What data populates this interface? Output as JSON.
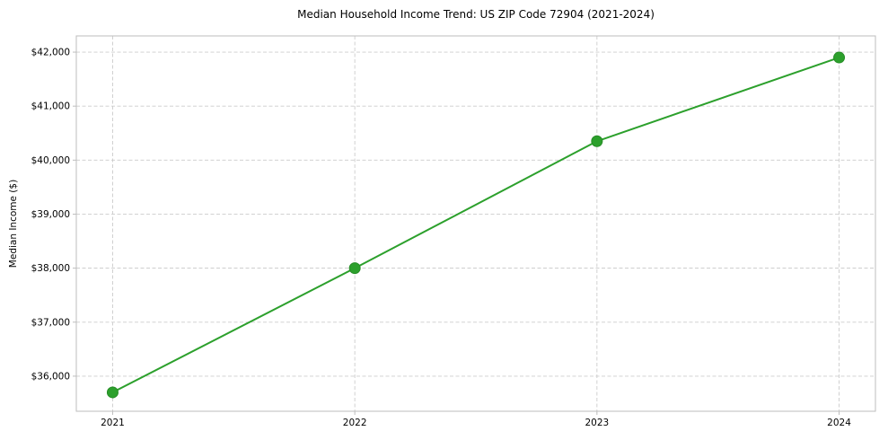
{
  "chart_data": {
    "type": "line",
    "title": "Median Household Income Trend: US ZIP Code 72904 (2021-2024)",
    "xlabel": "",
    "ylabel": "Median Income ($)",
    "x": [
      2021,
      2022,
      2023,
      2024
    ],
    "y": [
      35700,
      38000,
      40350,
      41900
    ],
    "series": [
      {
        "name": "Median Household Income",
        "x": [
          2021,
          2022,
          2023,
          2024
        ],
        "y": [
          35700,
          38000,
          40350,
          41900
        ]
      }
    ],
    "xtick_labels": [
      "2021",
      "2022",
      "2023",
      "2024"
    ],
    "yticks": [
      36000,
      37000,
      38000,
      39000,
      40000,
      41000,
      42000
    ],
    "ytick_labels": [
      "$36,000",
      "$37,000",
      "$38,000",
      "$39,000",
      "$40,000",
      "$41,000",
      "$42,000"
    ],
    "xlim": [
      2020.85,
      2024.15
    ],
    "ylim": [
      35350,
      42300
    ],
    "grid": true,
    "legend": "none",
    "colors": {
      "line": "#2ca02c",
      "marker": "#2ca02c",
      "marker_edge": "#268c26",
      "grid": "#cccccc",
      "spine": "#bdbdbd",
      "text": "#000000",
      "background": "#ffffff"
    }
  }
}
